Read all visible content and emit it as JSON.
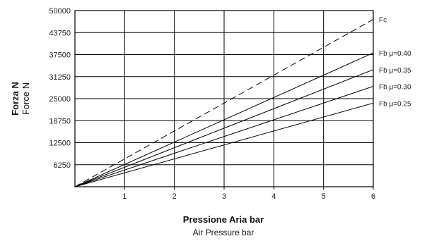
{
  "chart_data": {
    "type": "line",
    "ylabel_primary": "Forza N",
    "ylabel_secondary": "Force N",
    "xlabel_primary": "Pressione Aria bar",
    "xlabel_secondary": "Air Pressure bar",
    "xlim": [
      0,
      6
    ],
    "ylim": [
      0,
      50000
    ],
    "x_ticks": [
      "1",
      "2",
      "3",
      "4",
      "5",
      "6"
    ],
    "y_ticks": [
      "6250",
      "12500",
      "18750",
      "25000",
      "31250",
      "37500",
      "43750",
      "50000"
    ],
    "grid": true,
    "series": [
      {
        "name": "Fc",
        "style": "dashed",
        "x": [
          0,
          6
        ],
        "y": [
          0,
          47500
        ]
      },
      {
        "name": "Fb μ=0.40",
        "style": "solid",
        "x": [
          0,
          6
        ],
        "y": [
          0,
          38000
        ]
      },
      {
        "name": "Fb μ=0.35",
        "style": "solid",
        "x": [
          0,
          6
        ],
        "y": [
          0,
          33250
        ]
      },
      {
        "name": "Fb μ=0.30",
        "style": "solid",
        "x": [
          0,
          6
        ],
        "y": [
          0,
          28500
        ]
      },
      {
        "name": "Fb μ=0.25",
        "style": "solid",
        "x": [
          0,
          6
        ],
        "y": [
          0,
          23750
        ]
      }
    ]
  }
}
